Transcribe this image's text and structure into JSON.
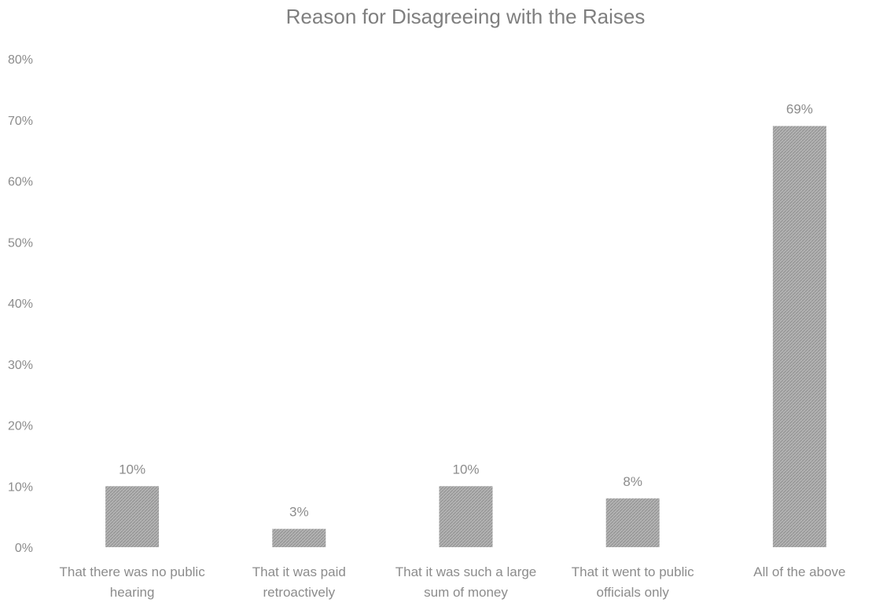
{
  "chart_data": {
    "type": "bar",
    "title": "Reason for Disagreeing with the Raises",
    "xlabel": "",
    "ylabel": "",
    "categories": [
      [
        "That there was no public",
        "hearing"
      ],
      [
        "That it was paid",
        "retroactively"
      ],
      [
        "That it was such a large",
        "sum of money"
      ],
      [
        "That it went to public",
        "officials only"
      ],
      [
        "All of the above"
      ]
    ],
    "values": [
      10,
      3,
      10,
      8,
      69
    ],
    "data_labels": [
      "10%",
      "3%",
      "10%",
      "8%",
      "69%"
    ],
    "ylim": [
      0,
      80
    ],
    "yticks": [
      "0%",
      "10%",
      "20%",
      "30%",
      "40%",
      "50%",
      "60%",
      "70%",
      "80%"
    ],
    "grid": false,
    "legend": "none",
    "colors": {
      "bar": "#a6a6a6",
      "text": "#8c8c8c",
      "title": "#7f7f7f"
    }
  }
}
